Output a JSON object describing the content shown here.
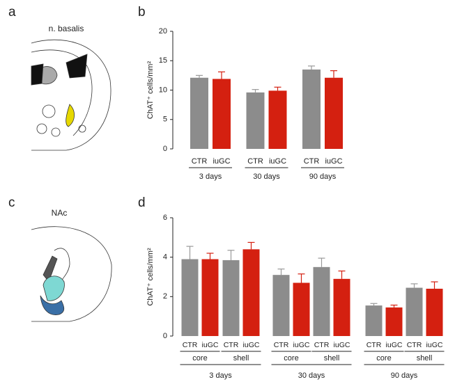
{
  "figure": {
    "panel_labels": [
      "a",
      "b",
      "c",
      "d"
    ],
    "diagram_titles": [
      "n. basalis",
      "NAc"
    ]
  },
  "chart_data": [
    {
      "type": "bar",
      "y_label": "ChAT⁺ cells/mm²",
      "categories": [
        "3 days",
        "30 days",
        "90 days"
      ],
      "series": [
        {
          "name": "CTR",
          "color": "#8c8c8c",
          "values": [
            12.1,
            9.6,
            13.5
          ],
          "errors": [
            0.4,
            0.5,
            0.6
          ]
        },
        {
          "name": "iuGC",
          "color": "#d42010",
          "values": [
            11.9,
            9.9,
            12.1
          ],
          "errors": [
            1.2,
            0.6,
            1.2
          ]
        }
      ],
      "ylim": [
        0,
        20
      ],
      "yticks": [
        0,
        5,
        10,
        15,
        20
      ]
    },
    {
      "type": "bar",
      "y_label": "ChAT⁺ cells/mm²",
      "categories": [
        "core",
        "shell",
        "core",
        "shell",
        "core",
        "shell"
      ],
      "groups": [
        "3 days",
        "30 days",
        "90 days"
      ],
      "series": [
        {
          "name": "CTR",
          "color": "#8c8c8c",
          "values": [
            3.9,
            3.85,
            3.1,
            3.5,
            1.55,
            2.45
          ],
          "errors": [
            0.65,
            0.5,
            0.3,
            0.45,
            0.1,
            0.2
          ]
        },
        {
          "name": "iuGC",
          "color": "#d42010",
          "values": [
            3.9,
            4.4,
            2.7,
            2.9,
            1.45,
            2.4
          ],
          "errors": [
            0.3,
            0.35,
            0.45,
            0.4,
            0.12,
            0.35
          ]
        }
      ],
      "ylim": [
        0,
        6
      ],
      "yticks": [
        0,
        2,
        4,
        6
      ]
    }
  ]
}
